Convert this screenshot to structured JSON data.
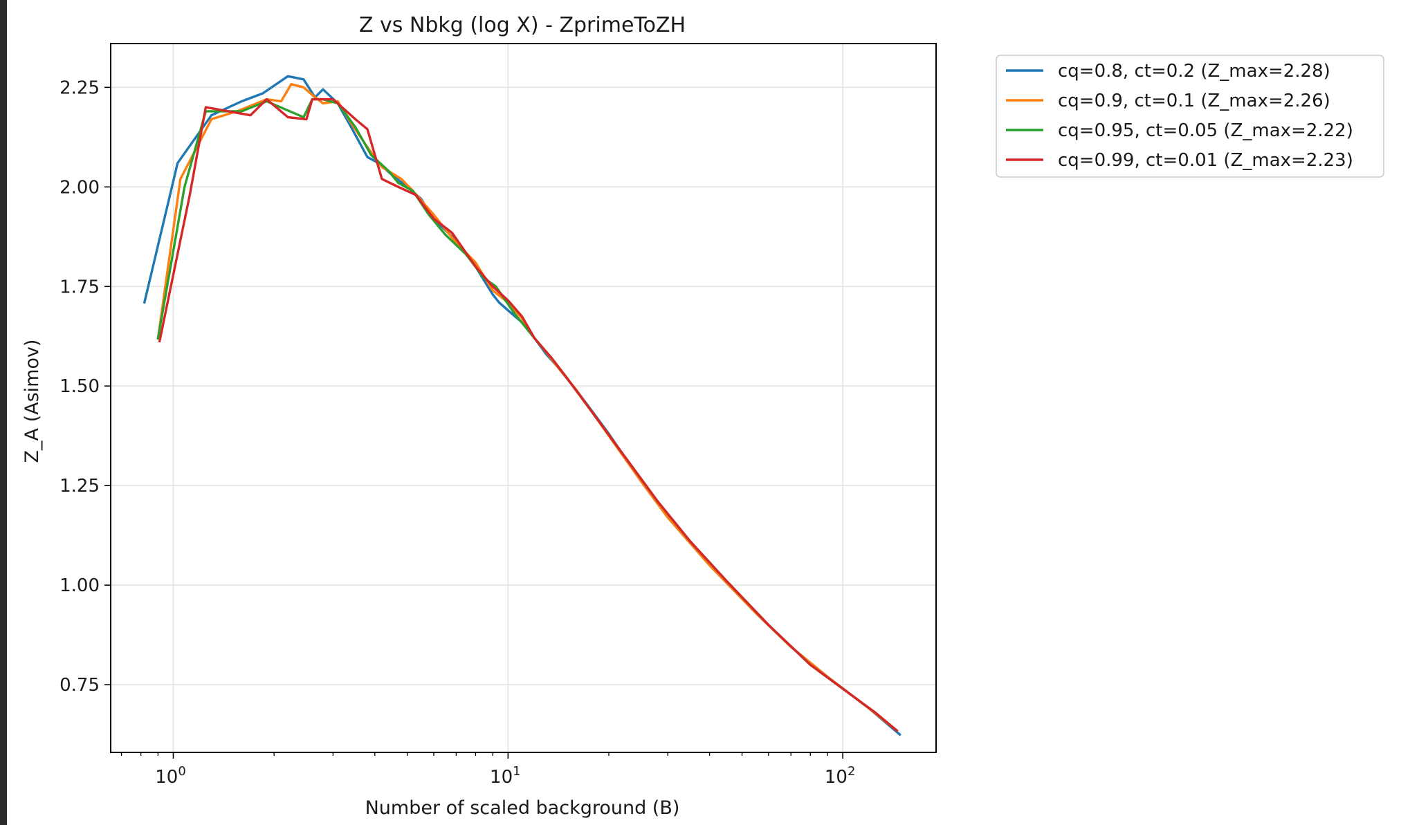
{
  "chart_data": {
    "type": "line",
    "title": "Z vs Nbkg (log X) - ZprimeToZH",
    "xlabel": "Number of scaled background (B)",
    "ylabel": "Z_A (Asimov)",
    "xscale": "log",
    "xlim": [
      0.65,
      190
    ],
    "ylim": [
      0.58,
      2.36
    ],
    "xticks": [
      {
        "value": 1,
        "base": "10",
        "exp": "0"
      },
      {
        "value": 10,
        "base": "10",
        "exp": "1"
      },
      {
        "value": 100,
        "base": "10",
        "exp": "2"
      }
    ],
    "yticks": [
      {
        "value": 0.75,
        "label": "0.75"
      },
      {
        "value": 1.0,
        "label": "1.00"
      },
      {
        "value": 1.25,
        "label": "1.25"
      },
      {
        "value": 1.5,
        "label": "1.50"
      },
      {
        "value": 1.75,
        "label": "1.75"
      },
      {
        "value": 2.0,
        "label": "2.00"
      },
      {
        "value": 2.25,
        "label": "2.25"
      }
    ],
    "grid": true,
    "legend_position": "outside-right-top",
    "series": [
      {
        "name": "cq=0.8, ct=0.2 (Z_max=2.28)",
        "color": "#1f77b4",
        "points": [
          [
            0.82,
            1.71
          ],
          [
            1.03,
            2.06
          ],
          [
            1.3,
            2.18
          ],
          [
            1.6,
            2.215
          ],
          [
            1.85,
            2.235
          ],
          [
            2.2,
            2.278
          ],
          [
            2.45,
            2.27
          ],
          [
            2.65,
            2.225
          ],
          [
            2.8,
            2.245
          ],
          [
            3.1,
            2.21
          ],
          [
            3.4,
            2.15
          ],
          [
            3.8,
            2.075
          ],
          [
            4.1,
            2.06
          ],
          [
            4.5,
            2.03
          ],
          [
            5.0,
            2.0
          ],
          [
            5.5,
            1.97
          ],
          [
            6.0,
            1.92
          ],
          [
            7.0,
            1.865
          ],
          [
            8.0,
            1.8
          ],
          [
            9.0,
            1.73
          ],
          [
            9.4,
            1.71
          ],
          [
            10.0,
            1.69
          ],
          [
            11.0,
            1.66
          ],
          [
            12.0,
            1.62
          ],
          [
            13.0,
            1.58
          ],
          [
            14.0,
            1.55
          ],
          [
            16.0,
            1.49
          ],
          [
            20.0,
            1.38
          ],
          [
            25.0,
            1.26
          ],
          [
            30.0,
            1.17
          ],
          [
            40.0,
            1.05
          ],
          [
            55.0,
            0.93
          ],
          [
            70.0,
            0.845
          ],
          [
            90.0,
            0.77
          ],
          [
            120.0,
            0.69
          ],
          [
            148.0,
            0.625
          ]
        ]
      },
      {
        "name": "cq=0.9, ct=0.1 (Z_max=2.26)",
        "color": "#ff7f0e",
        "points": [
          [
            0.9,
            1.62
          ],
          [
            1.05,
            2.02
          ],
          [
            1.3,
            2.17
          ],
          [
            1.55,
            2.19
          ],
          [
            1.9,
            2.22
          ],
          [
            2.1,
            2.215
          ],
          [
            2.25,
            2.258
          ],
          [
            2.45,
            2.25
          ],
          [
            2.65,
            2.225
          ],
          [
            2.8,
            2.21
          ],
          [
            3.1,
            2.215
          ],
          [
            3.4,
            2.16
          ],
          [
            3.8,
            2.1
          ],
          [
            4.2,
            2.05
          ],
          [
            4.8,
            2.02
          ],
          [
            5.2,
            1.99
          ],
          [
            6.0,
            1.93
          ],
          [
            7.0,
            1.86
          ],
          [
            8.0,
            1.81
          ],
          [
            9.0,
            1.74
          ],
          [
            10.0,
            1.71
          ],
          [
            11.0,
            1.67
          ],
          [
            12.0,
            1.62
          ],
          [
            13.0,
            1.585
          ],
          [
            14.0,
            1.55
          ],
          [
            16.0,
            1.49
          ],
          [
            20.0,
            1.375
          ],
          [
            25.0,
            1.26
          ],
          [
            30.0,
            1.17
          ],
          [
            40.0,
            1.05
          ],
          [
            55.0,
            0.93
          ],
          [
            70.0,
            0.845
          ],
          [
            90.0,
            0.77
          ],
          [
            120.0,
            0.69
          ],
          [
            145.0,
            0.635
          ]
        ]
      },
      {
        "name": "cq=0.95, ct=0.05 (Z_max=2.22)",
        "color": "#2ca02c",
        "points": [
          [
            0.9,
            1.62
          ],
          [
            1.08,
            2.0
          ],
          [
            1.25,
            2.19
          ],
          [
            1.6,
            2.19
          ],
          [
            1.9,
            2.215
          ],
          [
            2.45,
            2.175
          ],
          [
            2.6,
            2.22
          ],
          [
            2.8,
            2.22
          ],
          [
            3.1,
            2.21
          ],
          [
            3.5,
            2.15
          ],
          [
            3.9,
            2.08
          ],
          [
            4.4,
            2.04
          ],
          [
            4.7,
            2.01
          ],
          [
            5.2,
            1.99
          ],
          [
            5.8,
            1.93
          ],
          [
            6.5,
            1.88
          ],
          [
            7.5,
            1.83
          ],
          [
            8.5,
            1.77
          ],
          [
            9.2,
            1.75
          ],
          [
            10.5,
            1.68
          ],
          [
            12.0,
            1.62
          ],
          [
            13.5,
            1.57
          ],
          [
            15.0,
            1.52
          ],
          [
            18.0,
            1.43
          ],
          [
            22.0,
            1.33
          ],
          [
            28.0,
            1.21
          ],
          [
            35.0,
            1.11
          ],
          [
            45.0,
            1.01
          ],
          [
            60.0,
            0.9
          ],
          [
            80.0,
            0.8
          ],
          [
            100.0,
            0.74
          ],
          [
            125.0,
            0.68
          ],
          [
            145.0,
            0.635
          ]
        ]
      },
      {
        "name": "cq=0.99, ct=0.01 (Z_max=2.23)",
        "color": "#d62728",
        "points": [
          [
            0.91,
            1.613
          ],
          [
            1.12,
            1.98
          ],
          [
            1.25,
            2.2
          ],
          [
            1.7,
            2.18
          ],
          [
            1.9,
            2.22
          ],
          [
            2.2,
            2.175
          ],
          [
            2.5,
            2.17
          ],
          [
            2.6,
            2.22
          ],
          [
            3.0,
            2.22
          ],
          [
            3.5,
            2.17
          ],
          [
            3.8,
            2.145
          ],
          [
            4.2,
            2.02
          ],
          [
            4.7,
            2.0
          ],
          [
            5.3,
            1.98
          ],
          [
            6.0,
            1.92
          ],
          [
            6.8,
            1.885
          ],
          [
            8.0,
            1.8
          ],
          [
            9.0,
            1.75
          ],
          [
            10.0,
            1.715
          ],
          [
            11.0,
            1.675
          ],
          [
            12.0,
            1.62
          ],
          [
            13.5,
            1.57
          ],
          [
            15.0,
            1.52
          ],
          [
            18.0,
            1.43
          ],
          [
            22.0,
            1.33
          ],
          [
            28.0,
            1.21
          ],
          [
            35.0,
            1.11
          ],
          [
            45.0,
            1.01
          ],
          [
            60.0,
            0.9
          ],
          [
            80.0,
            0.8
          ],
          [
            100.0,
            0.74
          ],
          [
            125.0,
            0.68
          ],
          [
            145.0,
            0.635
          ]
        ]
      }
    ]
  }
}
